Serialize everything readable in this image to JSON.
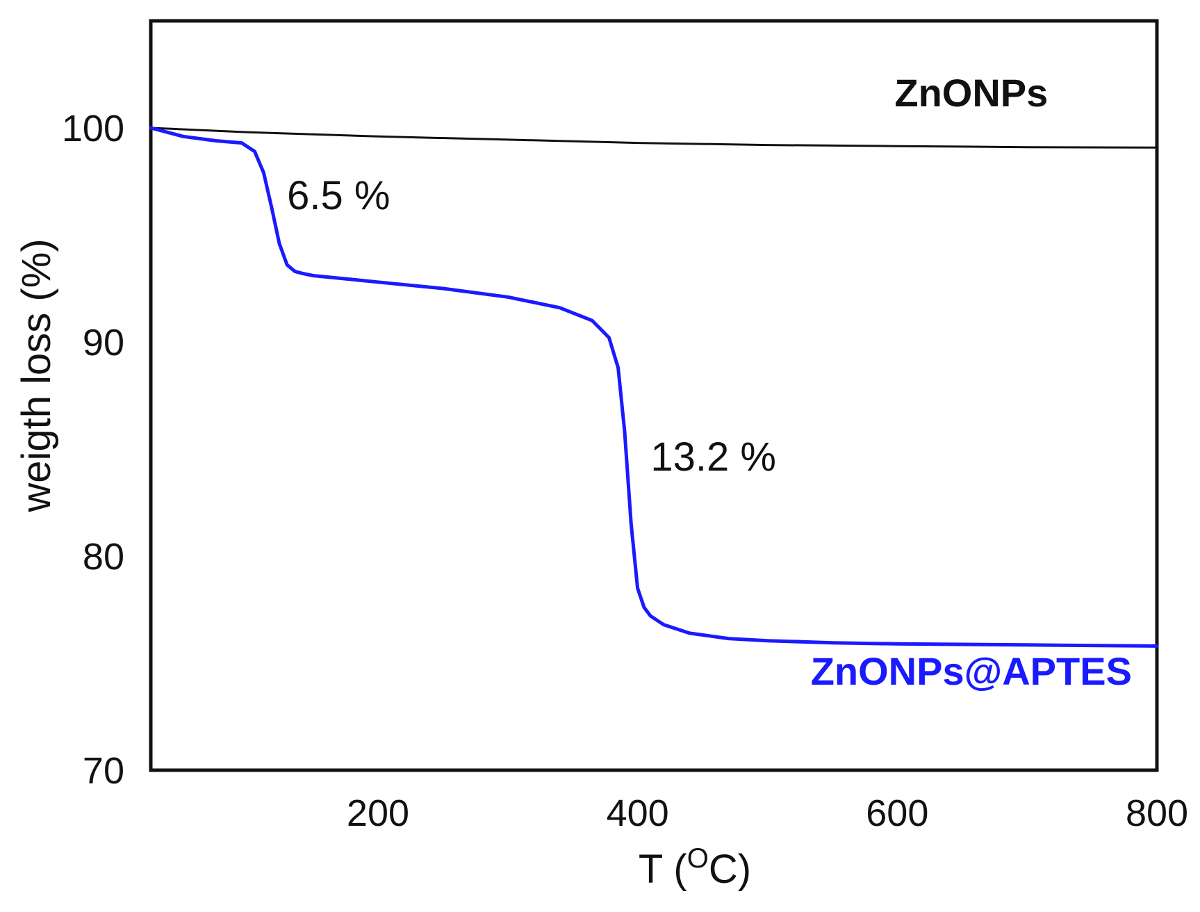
{
  "chart_data": {
    "type": "line",
    "xlabel": "T (",
    "xlabel_sup": "O",
    "xlabel_suffix": "C)",
    "ylabel": "weigth loss (%)",
    "xlim": [
      25,
      800
    ],
    "ylim": [
      70,
      105
    ],
    "xticks": [
      200,
      400,
      600,
      800
    ],
    "yticks": [
      70,
      80,
      90,
      100
    ],
    "grid": false,
    "colors": {
      "ZnONPs": "#111111",
      "ZnONPs@APTES": "#1a1aff"
    },
    "series": [
      {
        "name": "ZnONPs",
        "x": [
          25,
          100,
          200,
          300,
          400,
          500,
          600,
          700,
          800
        ],
        "y": [
          100,
          99.8,
          99.6,
          99.45,
          99.3,
          99.2,
          99.15,
          99.1,
          99.08
        ]
      },
      {
        "name": "ZnONPs@APTES",
        "x": [
          25,
          50,
          75,
          95,
          105,
          112,
          118,
          124,
          130,
          136,
          142,
          150,
          175,
          200,
          250,
          300,
          340,
          365,
          378,
          385,
          390,
          395,
          400,
          405,
          410,
          420,
          440,
          470,
          500,
          550,
          600,
          700,
          800
        ],
        "y": [
          100,
          99.6,
          99.4,
          99.3,
          98.9,
          97.9,
          96.3,
          94.6,
          93.6,
          93.3,
          93.2,
          93.1,
          92.95,
          92.8,
          92.5,
          92.1,
          91.6,
          91.0,
          90.2,
          88.8,
          85.8,
          81.5,
          78.5,
          77.6,
          77.2,
          76.8,
          76.4,
          76.15,
          76.05,
          75.95,
          75.9,
          75.85,
          75.8
        ]
      }
    ],
    "annotations": [
      {
        "text": "6.5 %",
        "x": 130,
        "y": 96.2
      },
      {
        "text": "13.2 %",
        "x": 410,
        "y": 84.0
      }
    ],
    "series_labels": [
      {
        "text": "ZnONPs",
        "series": "ZnONPs",
        "x": 657,
        "y": 101.0
      },
      {
        "text": "ZnONPs@APTES",
        "series": "ZnONPs@APTES",
        "x": 657,
        "y": 74.0
      }
    ]
  }
}
